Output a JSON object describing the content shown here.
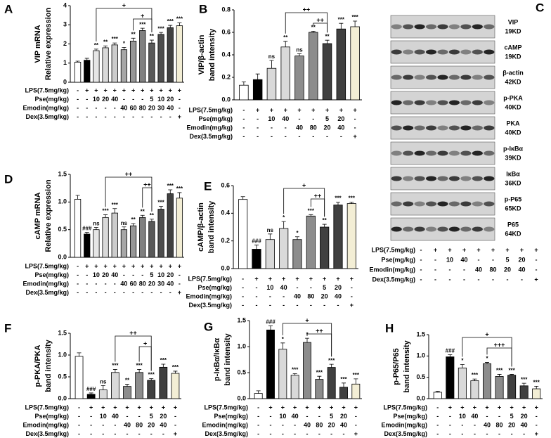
{
  "chart_data": [
    {
      "type": "bar",
      "label": "A",
      "ylabel": [
        "VIP mRNA",
        "Relative expression"
      ],
      "ylim": [
        0,
        4
      ],
      "yticks": [
        0,
        1,
        2,
        3,
        4
      ],
      "values": [
        1.05,
        1.15,
        1.65,
        1.8,
        1.95,
        1.7,
        2.15,
        2.7,
        2.05,
        2.5,
        2.85,
        2.95
      ],
      "errors": [
        0.05,
        0.1,
        0.08,
        0.1,
        0.1,
        0.12,
        0.15,
        0.12,
        0.15,
        0.1,
        0.12,
        0.15
      ],
      "annotations": [
        null,
        null,
        "**",
        "**",
        "***",
        "*",
        "**",
        "***",
        "**",
        "***",
        "***",
        "***"
      ],
      "colors": [
        "#ffffff",
        "#000000",
        "#e6e6e6",
        "#d9d9d9",
        "#cccccc",
        "#a6a6a6",
        "#969696",
        "#808080",
        "#595959",
        "#4d4d4d",
        "#404040",
        "#f3eed5"
      ],
      "conditions": [
        {
          "name": "LPS(7.5mg/kg)",
          "values": [
            "-",
            "+",
            "+",
            "+",
            "+",
            "+",
            "+",
            "+",
            "+",
            "+",
            "+",
            "+"
          ]
        },
        {
          "name": "Pse(mg/kg)",
          "values": [
            "-",
            "-",
            "10",
            "20",
            "40",
            "-",
            "-",
            "-",
            "5",
            "10",
            "20",
            "-"
          ]
        },
        {
          "name": "Emodin(mg/kg)",
          "values": [
            "-",
            "-",
            "-",
            "-",
            "-",
            "40",
            "60",
            "80",
            "20",
            "30",
            "40",
            "-"
          ]
        },
        {
          "name": "Dex(3.5mg/kg)",
          "values": [
            "-",
            "-",
            "-",
            "-",
            "-",
            "-",
            "-",
            "-",
            "-",
            "-",
            "-",
            "+"
          ]
        }
      ],
      "comparisons": [
        {
          "from": 2,
          "to": 8,
          "label": "+"
        },
        {
          "from": 6,
          "to": 8,
          "label": "+"
        }
      ]
    },
    {
      "type": "bar",
      "label": "B",
      "ylabel": [
        "VIP/β-actin",
        "band intensity"
      ],
      "ylim": [
        0,
        0.8
      ],
      "yticks": [
        {
          "value": 0,
          "label": "0.0"
        },
        0.2,
        0.4,
        0.6,
        0.8
      ],
      "values": [
        0.13,
        0.18,
        0.28,
        0.47,
        0.39,
        0.6,
        0.5,
        0.63,
        0.65
      ],
      "errors": [
        0.03,
        0.05,
        0.07,
        0.05,
        0.02,
        0.01,
        0.03,
        0.05,
        0.05
      ],
      "annotations": [
        null,
        null,
        "ns",
        "**",
        "ns",
        "**",
        "**",
        "***",
        "***"
      ],
      "colors": [
        "#ffffff",
        "#000000",
        "#d9d9d9",
        "#d9d9d9",
        "#8c8c8c",
        "#8c8c8c",
        "#404040",
        "#404040",
        "#f3eed5"
      ],
      "conditions": [
        {
          "name": "LPS(7.5mg/kg)",
          "values": [
            "-",
            "+",
            "+",
            "+",
            "+",
            "+",
            "+",
            "+",
            "+"
          ]
        },
        {
          "name": "Pse(mg/kg)",
          "values": [
            "-",
            "-",
            "10",
            "40",
            "-",
            "-",
            "5",
            "20",
            "-"
          ]
        },
        {
          "name": "Emodin(mg/kg)",
          "values": [
            "-",
            "-",
            "-",
            "-",
            "40",
            "80",
            "20",
            "40",
            "-"
          ]
        },
        {
          "name": "Dex(3.5mg/kg)",
          "values": [
            "-",
            "-",
            "-",
            "-",
            "-",
            "-",
            "-",
            "-",
            "+"
          ]
        }
      ],
      "comparisons": [
        {
          "from": 3,
          "to": 6,
          "label": "++"
        },
        {
          "from": 5,
          "to": 6,
          "label": "++"
        }
      ]
    },
    {
      "type": "bar",
      "label": "D",
      "ylabel": [
        "cAMP mRNA",
        "Relative expression"
      ],
      "ylim": [
        0,
        1.5
      ],
      "yticks": [
        {
          "value": 0,
          "label": "0.0"
        },
        0.5,
        {
          "value": 1,
          "label": "1.0"
        },
        1.5
      ],
      "values": [
        1.05,
        0.42,
        0.5,
        0.72,
        0.8,
        0.5,
        0.57,
        0.72,
        0.65,
        0.87,
        1.15,
        1.07
      ],
      "errors": [
        0.07,
        0.03,
        0.04,
        0.05,
        0.08,
        0.05,
        0.04,
        0.04,
        0.04,
        0.05,
        0.07,
        0.1
      ],
      "annotations": [
        null,
        "###",
        "ns",
        "***",
        "***",
        "ns",
        "**",
        "**",
        "**",
        "***",
        "***",
        "***"
      ],
      "colors": [
        "#ffffff",
        "#000000",
        "#e6e6e6",
        "#d9d9d9",
        "#cccccc",
        "#a6a6a6",
        "#969696",
        "#808080",
        "#595959",
        "#4d4d4d",
        "#404040",
        "#f3eed5"
      ],
      "conditions": [
        {
          "name": "LPS(7.5mg/kg)",
          "values": [
            "-",
            "+",
            "+",
            "+",
            "+",
            "+",
            "+",
            "+",
            "+",
            "+",
            "+",
            "+"
          ]
        },
        {
          "name": "Pse(mg/kg)",
          "values": [
            "-",
            "-",
            "10",
            "20",
            "40",
            "-",
            "-",
            "-",
            "5",
            "10",
            "20",
            "-"
          ]
        },
        {
          "name": "Emodin(mg/kg)",
          "values": [
            "-",
            "-",
            "-",
            "-",
            "-",
            "40",
            "60",
            "80",
            "20",
            "30",
            "40",
            "-"
          ]
        },
        {
          "name": "Dex(3.5mg/kg)",
          "values": [
            "-",
            "-",
            "-",
            "-",
            "-",
            "-",
            "-",
            "-",
            "-",
            "-",
            "-",
            "+"
          ]
        }
      ],
      "comparisons": [
        {
          "from": 3,
          "to": 8,
          "label": "++"
        },
        {
          "from": 7,
          "to": 8,
          "label": "++"
        }
      ]
    },
    {
      "type": "bar",
      "label": "E",
      "ylabel": [
        "cAMP/β-actin",
        "band intensity"
      ],
      "ylim": [
        0,
        0.6
      ],
      "yticks": [
        {
          "value": 0,
          "label": "0.0"
        },
        0.2,
        0.4,
        0.6
      ],
      "values": [
        0.5,
        0.14,
        0.21,
        0.29,
        0.21,
        0.38,
        0.3,
        0.46,
        0.47
      ],
      "errors": [
        0.02,
        0.03,
        0.04,
        0.05,
        0.02,
        0.01,
        0.02,
        0.02,
        0.01
      ],
      "annotations": [
        null,
        "###",
        "ns",
        "*",
        "*",
        "***",
        "**",
        "***",
        "***"
      ],
      "colors": [
        "#ffffff",
        "#000000",
        "#d9d9d9",
        "#d9d9d9",
        "#8c8c8c",
        "#8c8c8c",
        "#404040",
        "#404040",
        "#f3eed5"
      ],
      "conditions": [
        {
          "name": "LPS(7.5mg/kg)",
          "values": [
            "-",
            "+",
            "+",
            "+",
            "+",
            "+",
            "+",
            "+",
            "+"
          ]
        },
        {
          "name": "Pse(mg/kg)",
          "values": [
            "-",
            "-",
            "10",
            "40",
            "-",
            "-",
            "5",
            "20",
            "-"
          ]
        },
        {
          "name": "Emodin(mg/kg)",
          "values": [
            "-",
            "-",
            "-",
            "-",
            "40",
            "80",
            "20",
            "40",
            "-"
          ]
        },
        {
          "name": "Dex(3.5mg/kg)",
          "values": [
            "-",
            "-",
            "-",
            "-",
            "-",
            "-",
            "-",
            "-",
            "+"
          ]
        }
      ],
      "comparisons": [
        {
          "from": 3,
          "to": 6,
          "label": "+"
        },
        {
          "from": 5,
          "to": 6,
          "label": "++"
        }
      ]
    },
    {
      "type": "bar",
      "label": "F",
      "ylabel": [
        "p-PKA/PKA",
        "band intensity"
      ],
      "ylim": [
        0,
        1.5
      ],
      "yticks": [
        {
          "value": 0,
          "label": "0.0"
        },
        0.5,
        {
          "value": 1,
          "label": "1.0"
        },
        1.5
      ],
      "values": [
        0.97,
        0.1,
        0.2,
        0.6,
        0.28,
        0.6,
        0.42,
        0.72,
        0.58
      ],
      "errors": [
        0.08,
        0.03,
        0.1,
        0.07,
        0.05,
        0.07,
        0.04,
        0.07,
        0.05
      ],
      "annotations": [
        null,
        "###",
        "ns",
        "***",
        "**",
        "***",
        "***",
        "***",
        "***"
      ],
      "colors": [
        "#ffffff",
        "#000000",
        "#d9d9d9",
        "#d9d9d9",
        "#8c8c8c",
        "#8c8c8c",
        "#404040",
        "#404040",
        "#f3eed5"
      ],
      "conditions": [
        {
          "name": "LPS(7.5mg/kg)",
          "values": [
            "-",
            "+",
            "+",
            "+",
            "+",
            "+",
            "+",
            "+",
            "+"
          ]
        },
        {
          "name": "Pse(mg/kg)",
          "values": [
            "-",
            "-",
            "10",
            "40",
            "-",
            "-",
            "5",
            "20",
            "-"
          ]
        },
        {
          "name": "Emodin(mg/kg)",
          "values": [
            "-",
            "-",
            "-",
            "-",
            "40",
            "80",
            "20",
            "40",
            "-"
          ]
        },
        {
          "name": "Dex(3.5mg/kg)",
          "values": [
            "-",
            "-",
            "-",
            "-",
            "-",
            "-",
            "-",
            "-",
            "+"
          ]
        }
      ],
      "comparisons": [
        {
          "from": 3,
          "to": 6,
          "label": "++"
        },
        {
          "from": 5,
          "to": 6,
          "label": "+"
        }
      ]
    },
    {
      "type": "bar",
      "label": "G",
      "ylabel": [
        "p-IκBα/IκBα",
        "band intensity"
      ],
      "ylim": [
        0,
        1.5
      ],
      "yticks": [
        {
          "value": 0,
          "label": "0.0"
        },
        0.5,
        {
          "value": 1,
          "label": "1.0"
        },
        1.5
      ],
      "values": [
        0.1,
        1.32,
        0.95,
        0.45,
        1.08,
        0.37,
        0.6,
        0.22,
        0.28
      ],
      "errors": [
        0.05,
        0.08,
        0.12,
        0.03,
        0.08,
        0.06,
        0.06,
        0.08,
        0.1
      ],
      "annotations": [
        null,
        "###",
        "*",
        "***",
        "*",
        "***",
        "***",
        "***",
        "***"
      ],
      "colors": [
        "#ffffff",
        "#000000",
        "#d9d9d9",
        "#d9d9d9",
        "#8c8c8c",
        "#8c8c8c",
        "#404040",
        "#404040",
        "#f3eed5"
      ],
      "conditions": [
        {
          "name": "LPS(7.5mg/kg)",
          "values": [
            "-",
            "+",
            "+",
            "+",
            "+",
            "+",
            "+",
            "+",
            "+"
          ]
        },
        {
          "name": "Pse(mg/kg)",
          "values": [
            "-",
            "-",
            "10",
            "40",
            "-",
            "-",
            "5",
            "20",
            "-"
          ]
        },
        {
          "name": "Emodin(mg/kg)",
          "values": [
            "-",
            "-",
            "-",
            "-",
            "40",
            "80",
            "20",
            "40",
            "-"
          ]
        },
        {
          "name": "Dex(3.5mg/kg)",
          "values": [
            "-",
            "-",
            "-",
            "-",
            "-",
            "-",
            "-",
            "-",
            "+"
          ]
        }
      ],
      "comparisons": [
        {
          "from": 2,
          "to": 6,
          "label": "+"
        },
        {
          "from": 4,
          "to": 6,
          "label": "++"
        }
      ]
    },
    {
      "type": "bar",
      "label": "H",
      "ylabel": [
        "p-P65/P65",
        "band intensity"
      ],
      "ylim": [
        0,
        1.5
      ],
      "yticks": [
        {
          "value": 0,
          "label": "0.0"
        },
        0.5,
        {
          "value": 1,
          "label": "1.0"
        },
        1.5
      ],
      "values": [
        0.15,
        0.98,
        0.72,
        0.42,
        0.82,
        0.52,
        0.55,
        0.3,
        0.23
      ],
      "errors": [
        0.02,
        0.05,
        0.08,
        0.04,
        0.03,
        0.05,
        0.02,
        0.06,
        0.06
      ],
      "annotations": [
        null,
        "###",
        "*",
        "***",
        "*",
        "***",
        "***",
        "***",
        "***"
      ],
      "colors": [
        "#ffffff",
        "#000000",
        "#d9d9d9",
        "#d9d9d9",
        "#8c8c8c",
        "#8c8c8c",
        "#404040",
        "#404040",
        "#f3eed5"
      ],
      "conditions": [
        {
          "name": "LPS(7.5mg/kg)",
          "values": [
            "-",
            "+",
            "+",
            "+",
            "+",
            "+",
            "+",
            "+",
            "+"
          ]
        },
        {
          "name": "Pse(mg/kg)",
          "values": [
            "-",
            "-",
            "10",
            "40",
            "-",
            "-",
            "5",
            "20",
            "-"
          ]
        },
        {
          "name": "Emodin(mg/kg)",
          "values": [
            "-",
            "-",
            "-",
            "-",
            "40",
            "80",
            "20",
            "40",
            "-"
          ]
        },
        {
          "name": "Dex(3.5mg/kg)",
          "values": [
            "-",
            "-",
            "-",
            "-",
            "-",
            "-",
            "-",
            "-",
            "+"
          ]
        }
      ],
      "comparisons": [
        {
          "from": 2,
          "to": 6,
          "label": "+"
        },
        {
          "from": 4,
          "to": 6,
          "label": "+++"
        }
      ]
    }
  ],
  "blot": {
    "label": "C",
    "rows": [
      {
        "protein": "VIP",
        "size": "19KD"
      },
      {
        "protein": "cAMP",
        "size": "19KD"
      },
      {
        "protein": "β-actin",
        "size": "42KD"
      },
      {
        "protein": "p-PKA",
        "size": "40KD"
      },
      {
        "protein": "PKA",
        "size": "40KD"
      },
      {
        "protein": "p-IκBα",
        "size": "39KD"
      },
      {
        "protein": "IκBα",
        "size": "36KD"
      },
      {
        "protein": "p-P65",
        "size": "65KD"
      },
      {
        "protein": "P65",
        "size": "64KD"
      }
    ],
    "conditions": [
      {
        "name": "LPS(7.5mg/kg)",
        "values": [
          "-",
          "+",
          "+",
          "+",
          "+",
          "+",
          "+",
          "+",
          "+"
        ]
      },
      {
        "name": "Pse(mg/kg)",
        "values": [
          "-",
          "-",
          "10",
          "40",
          "-",
          "-",
          "5",
          "20",
          "-"
        ]
      },
      {
        "name": "Emodin(mg/kg)",
        "values": [
          "-",
          "-",
          "-",
          "-",
          "40",
          "80",
          "20",
          "40",
          "-"
        ]
      },
      {
        "name": "Dex(3.5mg/kg)",
        "values": [
          "-",
          "-",
          "-",
          "-",
          "-",
          "-",
          "-",
          "-",
          "+"
        ]
      }
    ]
  }
}
